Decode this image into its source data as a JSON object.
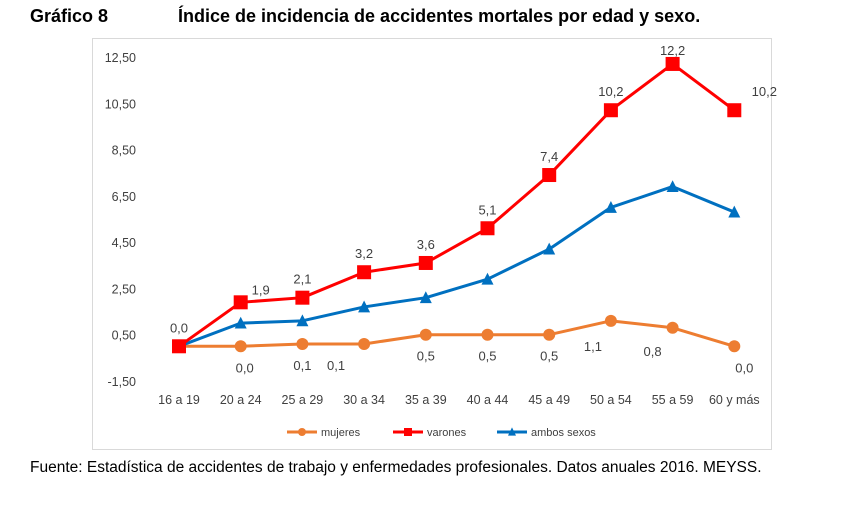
{
  "figure": {
    "number": "Gráfico 8",
    "title": "Índice de incidencia de accidentes mortales por edad y sexo.",
    "source": "Fuente: Estadística de accidentes de trabajo y enfermedades profesionales. Datos anuales 2016. MEYSS."
  },
  "chart_data": {
    "type": "line",
    "categories": [
      "16 a 19",
      "20 a 24",
      "25 a 29",
      "30 a 34",
      "35 a 39",
      "40 a 44",
      "45 a 49",
      "50 a 54",
      "55 a 59",
      "60 y más"
    ],
    "y_ticks": [
      "12,50",
      "10,50",
      "8,50",
      "6,50",
      "4,50",
      "2,50",
      "0,50",
      "-1,50"
    ],
    "ylim": [
      -1.5,
      12.5
    ],
    "grid": false,
    "legend": "bottom",
    "series": [
      {
        "name": "mujeres",
        "color": "#ED7D31",
        "marker": "circle",
        "values": [
          0.0,
          0.0,
          0.1,
          0.1,
          0.5,
          0.5,
          0.5,
          1.1,
          0.8,
          0.0
        ],
        "labels": [
          "",
          "0,0",
          "0,1",
          "0,1",
          "0,5",
          "0,5",
          "0,5",
          "1,1",
          "0,8",
          "0,0"
        ]
      },
      {
        "name": "varones",
        "color": "#FF0000",
        "marker": "square",
        "values": [
          0.0,
          1.9,
          2.1,
          3.2,
          3.6,
          5.1,
          7.4,
          10.2,
          12.2,
          10.2
        ],
        "labels": [
          "0,0",
          "1,9",
          "2,1",
          "3,2",
          "3,6",
          "5,1",
          "7,4",
          "10,2",
          "12,2",
          "10,2"
        ]
      },
      {
        "name": "ambos sexos",
        "color": "#0070C0",
        "marker": "triangle",
        "values": [
          0.0,
          1.0,
          1.1,
          1.7,
          2.1,
          2.9,
          4.2,
          6.0,
          6.9,
          5.8
        ],
        "labels": []
      }
    ]
  }
}
